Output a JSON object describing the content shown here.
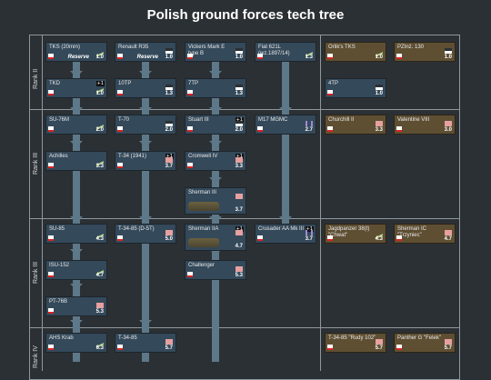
{
  "title": "Polish ground forces tech tree",
  "ranks": [
    "Rank II",
    "Rank III",
    "Rank III",
    "Rank IV"
  ],
  "vehicles": [
    {
      "id": "tks",
      "name": "TKS (20mm)",
      "br": "1.0",
      "reserve": "Reserve",
      "cls": "light"
    },
    {
      "id": "r35",
      "name": "Renault R35",
      "br": "1.0",
      "reserve": "Reserve",
      "cls": "med"
    },
    {
      "id": "vickers",
      "name": "Vickers Mark E\ntype B",
      "br": "1.0",
      "cls": "med"
    },
    {
      "id": "fiat",
      "name": "Fiat 621L\n(wz.1897/14)",
      "br": "1.3",
      "cls": "light"
    },
    {
      "id": "orlik",
      "name": "Orlik's TKS",
      "br": "1.0",
      "cls": "light",
      "premium": true
    },
    {
      "id": "pzinz",
      "name": "PZInż. 130",
      "br": "1.0",
      "cls": "med",
      "premium": true
    },
    {
      "id": "tkd",
      "name": "TKD",
      "br": "1.0",
      "cls": "light",
      "pack": "+1"
    },
    {
      "id": "10tp",
      "name": "10TP",
      "br": "1.3",
      "cls": "med"
    },
    {
      "id": "7tp",
      "name": "7TP",
      "br": "1.3",
      "cls": "med"
    },
    {
      "id": "4tp",
      "name": "4TP",
      "br": "1.0",
      "cls": "med"
    },
    {
      "id": "su76m",
      "name": "SU-76M",
      "br": "2.0",
      "cls": "light"
    },
    {
      "id": "t70",
      "name": "T-70",
      "br": "2.0",
      "cls": "med"
    },
    {
      "id": "stuart",
      "name": "Stuart III",
      "br": "2.0",
      "cls": "med",
      "pack": "+1"
    },
    {
      "id": "m17",
      "name": "M17 MGMC",
      "br": "2.7",
      "cls": "spaa"
    },
    {
      "id": "churchill",
      "name": "Churchill II",
      "br": "3.3",
      "cls": "heavy",
      "premium": true
    },
    {
      "id": "valentine",
      "name": "Valentine VIII",
      "br": "3.0",
      "cls": "heavy",
      "premium": true
    },
    {
      "id": "achilles",
      "name": "Achilles",
      "br": "3.3",
      "cls": "light"
    },
    {
      "id": "t34_1941",
      "name": "T-34 (1941)",
      "br": "3.7",
      "cls": "heavy",
      "pack": "+1"
    },
    {
      "id": "cromwell",
      "name": "Cromwell IV",
      "br": "3.3",
      "cls": "heavy",
      "pack": "+1"
    },
    {
      "id": "sherman3",
      "name": "Sherman III",
      "br": "3.7",
      "cls": "heavy"
    },
    {
      "id": "su85",
      "name": "SU-85",
      "br": "4.3",
      "cls": "light"
    },
    {
      "id": "t3485d5t",
      "name": "T-34-85 (D-5T)",
      "br": "5.0",
      "cls": "heavy"
    },
    {
      "id": "sherman2a",
      "name": "Sherman IIA",
      "br": "4.7",
      "cls": "heavy",
      "pack": "+1"
    },
    {
      "id": "crusaderaa",
      "name": "Crusader AA Mk III",
      "br": "3.7",
      "cls": "spaa",
      "pack": "+1"
    },
    {
      "id": "chwat",
      "name": "Jagdpanzer 38(t)\n\"Chwat\"",
      "br": "4.3",
      "cls": "light",
      "premium": true
    },
    {
      "id": "trzyniec",
      "name": "Sherman IC\n\"Trzyniec\"",
      "br": "4.7",
      "cls": "heavy",
      "premium": true
    },
    {
      "id": "isu152",
      "name": "ISU-152",
      "br": "4.7",
      "cls": "light"
    },
    {
      "id": "challenger",
      "name": "Challenger",
      "br": "5.3",
      "cls": "heavy"
    },
    {
      "id": "pt76b",
      "name": "PT-76B",
      "br": "5.3",
      "cls": "heavy"
    },
    {
      "id": "krab",
      "name": "AHS Krab",
      "br": "6.3",
      "cls": "light"
    },
    {
      "id": "t3485",
      "name": "T-34-85",
      "br": "5.7",
      "cls": "heavy"
    },
    {
      "id": "rudy",
      "name": "T-34-85 \"Rudy 102\"",
      "br": "5.7",
      "cls": "heavy",
      "premium": true
    },
    {
      "id": "felek",
      "name": "Panther G \"Felek\"",
      "br": "5.7",
      "cls": "heavy",
      "premium": true
    }
  ]
}
